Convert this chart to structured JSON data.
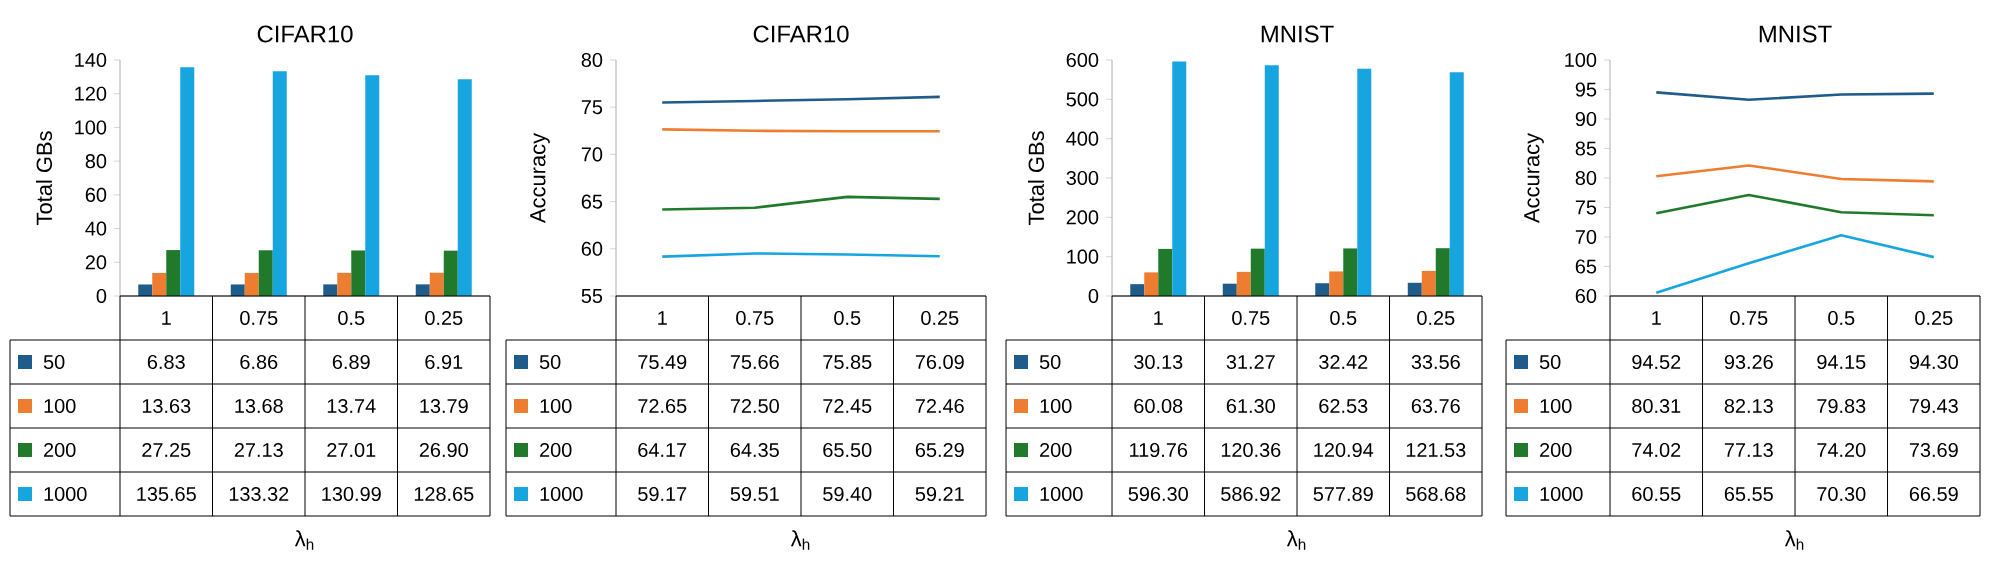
{
  "chart_data": [
    {
      "type": "bar",
      "title": "CIFAR10",
      "ylabel": "Total GBs",
      "xlabel": "λ$_{h}$",
      "categories": [
        "1",
        "0.75",
        "0.5",
        "0.25"
      ],
      "ylim": [
        0,
        140
      ],
      "yticks": [
        0,
        20,
        40,
        60,
        80,
        100,
        120,
        140
      ],
      "legend": "bottom",
      "series": [
        {
          "name": "50",
          "color": "#1f5c8b",
          "values": [
            6.83,
            6.86,
            6.89,
            6.91
          ],
          "value_labels": [
            "6.83",
            "6.86",
            "6.89",
            "6.91"
          ]
        },
        {
          "name": "100",
          "color": "#ed7d31",
          "values": [
            13.63,
            13.68,
            13.74,
            13.79
          ],
          "value_labels": [
            "13.63",
            "13.68",
            "13.74",
            "13.79"
          ]
        },
        {
          "name": "200",
          "color": "#217a2c",
          "values": [
            27.25,
            27.13,
            27.01,
            26.9
          ],
          "value_labels": [
            "27.25",
            "27.13",
            "27.01",
            "26.90"
          ]
        },
        {
          "name": "1000",
          "color": "#17a5e0",
          "values": [
            135.65,
            133.32,
            130.99,
            128.65
          ],
          "value_labels": [
            "135.65",
            "133.32",
            "130.99",
            "128.65"
          ]
        }
      ]
    },
    {
      "type": "line",
      "title": "CIFAR10",
      "ylabel": "Accuracy",
      "xlabel": "λ$_{h}$",
      "categories": [
        "1",
        "0.75",
        "0.5",
        "0.25"
      ],
      "ylim": [
        55,
        80
      ],
      "yticks": [
        55,
        60,
        65,
        70,
        75,
        80
      ],
      "legend": "bottom",
      "series": [
        {
          "name": "50",
          "color": "#1f5c8b",
          "values": [
            75.49,
            75.66,
            75.85,
            76.09
          ],
          "value_labels": [
            "75.49",
            "75.66",
            "75.85",
            "76.09"
          ]
        },
        {
          "name": "100",
          "color": "#ed7d31",
          "values": [
            72.65,
            72.5,
            72.45,
            72.46
          ],
          "value_labels": [
            "72.65",
            "72.50",
            "72.45",
            "72.46"
          ]
        },
        {
          "name": "200",
          "color": "#217a2c",
          "values": [
            64.17,
            64.35,
            65.5,
            65.29
          ],
          "value_labels": [
            "64.17",
            "64.35",
            "65.50",
            "65.29"
          ]
        },
        {
          "name": "1000",
          "color": "#17a5e0",
          "values": [
            59.17,
            59.51,
            59.4,
            59.21
          ],
          "value_labels": [
            "59.17",
            "59.51",
            "59.40",
            "59.21"
          ]
        }
      ]
    },
    {
      "type": "bar",
      "title": "MNIST",
      "ylabel": "Total GBs",
      "xlabel": "λ$_{h}$",
      "categories": [
        "1",
        "0.75",
        "0.5",
        "0.25"
      ],
      "ylim": [
        0,
        600
      ],
      "yticks": [
        0,
        100,
        200,
        300,
        400,
        500,
        600
      ],
      "legend": "bottom",
      "series": [
        {
          "name": "50",
          "color": "#1f5c8b",
          "values": [
            30.13,
            31.27,
            32.42,
            33.56
          ],
          "value_labels": [
            "30.13",
            "31.27",
            "32.42",
            "33.56"
          ]
        },
        {
          "name": "100",
          "color": "#ed7d31",
          "values": [
            60.08,
            61.3,
            62.53,
            63.76
          ],
          "value_labels": [
            "60.08",
            "61.30",
            "62.53",
            "63.76"
          ]
        },
        {
          "name": "200",
          "color": "#217a2c",
          "values": [
            119.76,
            120.36,
            120.94,
            121.53
          ],
          "value_labels": [
            "119.76",
            "120.36",
            "120.94",
            "121.53"
          ]
        },
        {
          "name": "1000",
          "color": "#17a5e0",
          "values": [
            596.3,
            586.92,
            577.89,
            568.68
          ],
          "value_labels": [
            "596.30",
            "586.92",
            "577.89",
            "568.68"
          ]
        }
      ]
    },
    {
      "type": "line",
      "title": "MNIST",
      "ylabel": "Accuracy",
      "xlabel": "λ$_{h}$",
      "categories": [
        "1",
        "0.75",
        "0.5",
        "0.25"
      ],
      "ylim": [
        60,
        100
      ],
      "yticks": [
        60,
        65,
        70,
        75,
        80,
        85,
        90,
        95,
        100
      ],
      "legend": "bottom",
      "series": [
        {
          "name": "50",
          "color": "#1f5c8b",
          "values": [
            94.52,
            93.26,
            94.15,
            94.3
          ],
          "value_labels": [
            "94.52",
            "93.26",
            "94.15",
            "94.30"
          ]
        },
        {
          "name": "100",
          "color": "#ed7d31",
          "values": [
            80.31,
            82.13,
            79.83,
            79.43
          ],
          "value_labels": [
            "80.31",
            "82.13",
            "79.83",
            "79.43"
          ]
        },
        {
          "name": "200",
          "color": "#217a2c",
          "values": [
            74.02,
            77.13,
            74.2,
            73.69
          ],
          "value_labels": [
            "74.02",
            "77.13",
            "74.20",
            "73.69"
          ]
        },
        {
          "name": "1000",
          "color": "#17a5e0",
          "values": [
            60.55,
            65.55,
            70.3,
            66.59
          ],
          "value_labels": [
            "60.55",
            "65.55",
            "70.30",
            "66.59"
          ]
        }
      ]
    }
  ]
}
